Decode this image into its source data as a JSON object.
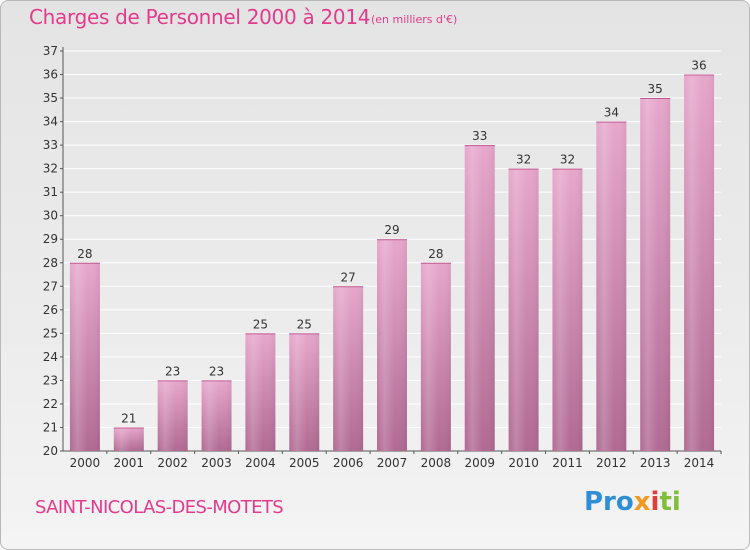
{
  "header": {
    "title": "Charges de Personnel 2000 à 2014",
    "subtitle": "(en milliers d'€)"
  },
  "footer": {
    "commune": "SAINT-NICOLAS-DES-MOTETS",
    "logo": [
      "Pro",
      "x",
      "i",
      "ti"
    ]
  },
  "colors": {
    "bar_top": "#e7a7cc",
    "bar_bottom": "#b16a93",
    "title": "#e33b8c",
    "grid": "#ffffff"
  },
  "chart_data": {
    "type": "bar",
    "title": "Charges de Personnel 2000 à 2014",
    "subtitle": "(en milliers d'€)",
    "categories": [
      "2000",
      "2001",
      "2002",
      "2003",
      "2004",
      "2005",
      "2006",
      "2007",
      "2008",
      "2009",
      "2010",
      "2011",
      "2012",
      "2013",
      "2014"
    ],
    "values": [
      28,
      21,
      23,
      23,
      25,
      25,
      27,
      29,
      28,
      33,
      32,
      32,
      34,
      35,
      36
    ],
    "ylim": [
      20,
      37
    ],
    "yticks": [
      20,
      21,
      22,
      23,
      24,
      25,
      26,
      27,
      28,
      29,
      30,
      31,
      32,
      33,
      34,
      35,
      36,
      37
    ],
    "grid": "horizontal",
    "xlabel": "",
    "ylabel": ""
  }
}
